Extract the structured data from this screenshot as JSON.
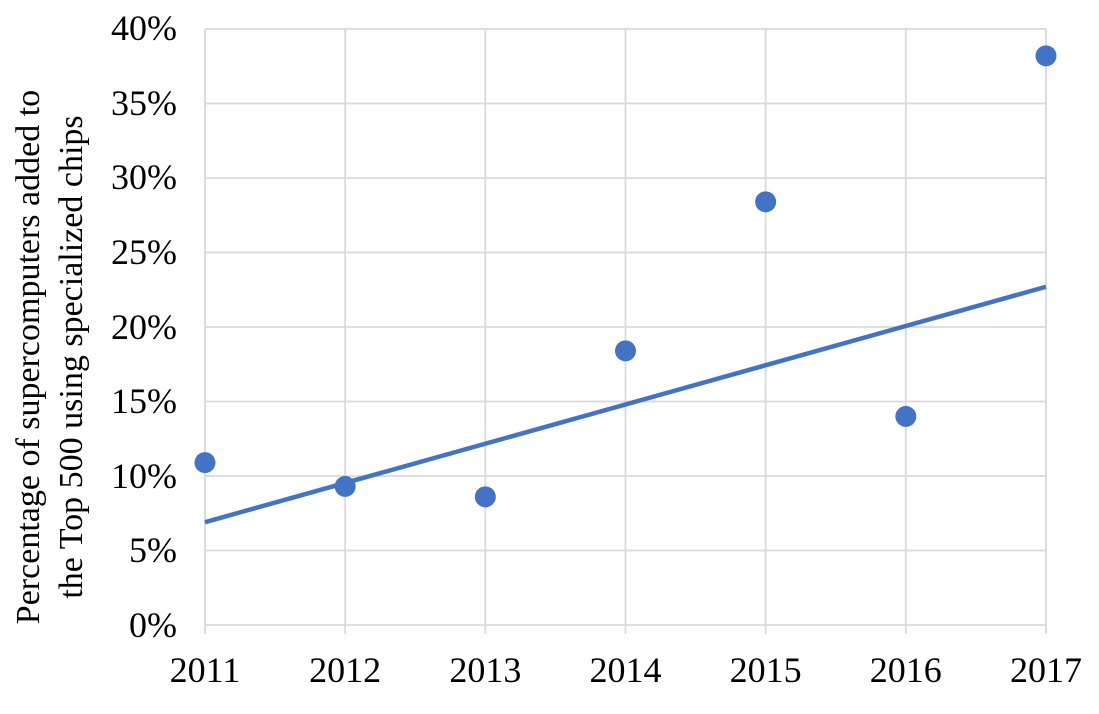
{
  "chart_data": {
    "type": "scatter",
    "title": "",
    "ylabel_lines": [
      "Percentage of supercomputers added to",
      "the Top 500 using specialized chips"
    ],
    "xlabel": "",
    "x": [
      2011,
      2012,
      2013,
      2014,
      2015,
      2016,
      2017
    ],
    "xtick_labels": [
      "2011",
      "2012",
      "2013",
      "2014",
      "2015",
      "2016",
      "2017"
    ],
    "values": [
      10.9,
      9.3,
      8.6,
      18.4,
      28.4,
      14.0,
      38.2
    ],
    "ylim": [
      0,
      40
    ],
    "ytick_step": 5,
    "ytick_labels": [
      "0%",
      "5%",
      "10%",
      "15%",
      "20%",
      "25%",
      "30%",
      "35%",
      "40%"
    ],
    "trendline": {
      "start": {
        "x": 2011,
        "y": 6.9
      },
      "end": {
        "x": 2017,
        "y": 22.7
      }
    },
    "grid": true,
    "legend": "none",
    "colors": {
      "marker": "#4472C4",
      "trendline": "#4472C4",
      "gridline": "#D9D9D9",
      "axis": "#D9D9D9",
      "text": "#000000",
      "background": "#FFFFFF"
    }
  }
}
